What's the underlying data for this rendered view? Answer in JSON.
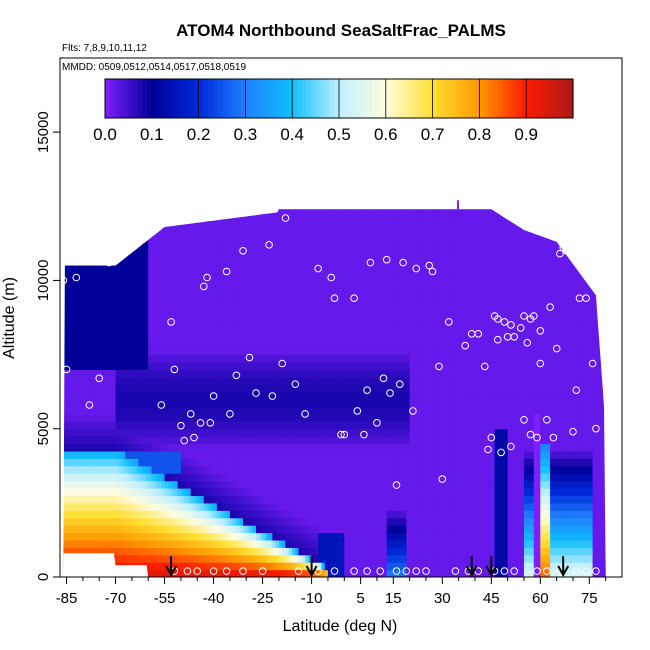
{
  "chart_data": {
    "type": "heatmap",
    "title": "ATOM4 Northbound SeaSaltFrac_PALMS",
    "flights_label": "Flts: 7,8,9,10,11,12",
    "dates_label": "MMDD: 0509,0512,0514,0517,0518,0519",
    "xlabel": "Latitude (deg N)",
    "ylabel": "Altitude (m)",
    "xlim": [
      -87,
      85
    ],
    "ylim": [
      0,
      17500
    ],
    "x_ticks": [
      -85,
      -70,
      -55,
      -40,
      -25,
      -10,
      5,
      15,
      30,
      45,
      60,
      75
    ],
    "y_ticks": [
      0,
      5000,
      10000,
      15000
    ],
    "colorbar": {
      "ticks": [
        "0.0",
        "0.1",
        "0.2",
        "0.3",
        "0.4",
        "0.5",
        "0.6",
        "0.7",
        "0.8",
        "0.9"
      ],
      "range": [
        0,
        1
      ],
      "colors": [
        "#7f1fff",
        "#000099",
        "#0029d9",
        "#1f7fff",
        "#0fbfff",
        "#bfefff",
        "#fffde0",
        "#ffe033",
        "#ff9900",
        "#ff1a00",
        "#aa1a1a"
      ]
    },
    "columns_profile": "curtain of sea-salt fraction vs latitude and altitude; high fraction (0.6-0.95) below ~4 km south of -30, low fraction (~0) above ~6 km everywhere",
    "sample_points": [
      [
        -86,
        10000
      ],
      [
        -85,
        7000
      ],
      [
        -82,
        10100
      ],
      [
        -78,
        5800
      ],
      [
        -75,
        6700
      ],
      [
        -72,
        10600
      ],
      [
        -70,
        10700
      ],
      [
        -66,
        11300
      ],
      [
        -63,
        11400
      ],
      [
        -60,
        11600
      ],
      [
        -56,
        5800
      ],
      [
        -53,
        8600
      ],
      [
        -52,
        7000
      ],
      [
        -50,
        5100
      ],
      [
        -49,
        4600
      ],
      [
        -47,
        5500
      ],
      [
        -46,
        4700
      ],
      [
        -44,
        5200
      ],
      [
        -43,
        9800
      ],
      [
        -42,
        10100
      ],
      [
        -41,
        5200
      ],
      [
        -40,
        6100
      ],
      [
        -36,
        10300
      ],
      [
        -35,
        5500
      ],
      [
        -33,
        6800
      ],
      [
        -31,
        11000
      ],
      [
        -29,
        7400
      ],
      [
        -27,
        6200
      ],
      [
        -23,
        11200
      ],
      [
        -22,
        6100
      ],
      [
        -19,
        7200
      ],
      [
        -18,
        12100
      ],
      [
        -15,
        6500
      ],
      [
        -12,
        5500
      ],
      [
        -8,
        10400
      ],
      [
        -4,
        10100
      ],
      [
        -3,
        9400
      ],
      [
        -1,
        4800
      ],
      [
        0,
        4800
      ],
      [
        3,
        9400
      ],
      [
        4,
        5600
      ],
      [
        6,
        4800
      ],
      [
        7,
        6300
      ],
      [
        8,
        10600
      ],
      [
        10,
        5200
      ],
      [
        12,
        6700
      ],
      [
        13,
        10700
      ],
      [
        14,
        6200
      ],
      [
        16,
        3100
      ],
      [
        17,
        6500
      ],
      [
        18,
        10600
      ],
      [
        21,
        5600
      ],
      [
        22,
        10400
      ],
      [
        26,
        10500
      ],
      [
        27,
        10300
      ],
      [
        29,
        7100
      ],
      [
        30,
        3300
      ],
      [
        32,
        8600
      ],
      [
        37,
        7800
      ],
      [
        39,
        8200
      ],
      [
        41,
        8200
      ],
      [
        43,
        7100
      ],
      [
        44,
        4300
      ],
      [
        45,
        4700
      ],
      [
        46,
        8800
      ],
      [
        47,
        8000
      ],
      [
        47,
        8700
      ],
      [
        48,
        4200
      ],
      [
        49,
        8600
      ],
      [
        50,
        8100
      ],
      [
        51,
        4400
      ],
      [
        51,
        8500
      ],
      [
        52,
        8100
      ],
      [
        54,
        8400
      ],
      [
        55,
        5300
      ],
      [
        55,
        8800
      ],
      [
        56,
        7900
      ],
      [
        57,
        4800
      ],
      [
        57,
        8700
      ],
      [
        58,
        8800
      ],
      [
        59,
        4700
      ],
      [
        60,
        8300
      ],
      [
        60,
        7200
      ],
      [
        62,
        5300
      ],
      [
        63,
        9100
      ],
      [
        64,
        4700
      ],
      [
        65,
        7700
      ],
      [
        66,
        10900
      ],
      [
        67,
        11100
      ],
      [
        68,
        11000
      ],
      [
        70,
        4900
      ],
      [
        71,
        6300
      ],
      [
        72,
        9400
      ],
      [
        74,
        9400
      ],
      [
        74,
        10400
      ],
      [
        76,
        7200
      ],
      [
        77,
        5000
      ],
      [
        -52,
        200
      ],
      [
        -48,
        200
      ],
      [
        -45,
        200
      ],
      [
        -40,
        200
      ],
      [
        -36,
        200
      ],
      [
        -31,
        200
      ],
      [
        -25,
        200
      ],
      [
        -14,
        200
      ],
      [
        -8,
        200
      ],
      [
        -3,
        200
      ],
      [
        3,
        200
      ],
      [
        7,
        200
      ],
      [
        11,
        200
      ],
      [
        16,
        200
      ],
      [
        19,
        200
      ],
      [
        22,
        200
      ],
      [
        25,
        200
      ],
      [
        34,
        200
      ],
      [
        38,
        200
      ],
      [
        41,
        200
      ],
      [
        46,
        200
      ],
      [
        49,
        200
      ],
      [
        52,
        200
      ],
      [
        59,
        200
      ],
      [
        62,
        200
      ],
      [
        66,
        200
      ],
      [
        71,
        200
      ],
      [
        74,
        200
      ],
      [
        77,
        200
      ]
    ],
    "arrow_latitudes": [
      -53,
      -10,
      39,
      45,
      67
    ]
  }
}
